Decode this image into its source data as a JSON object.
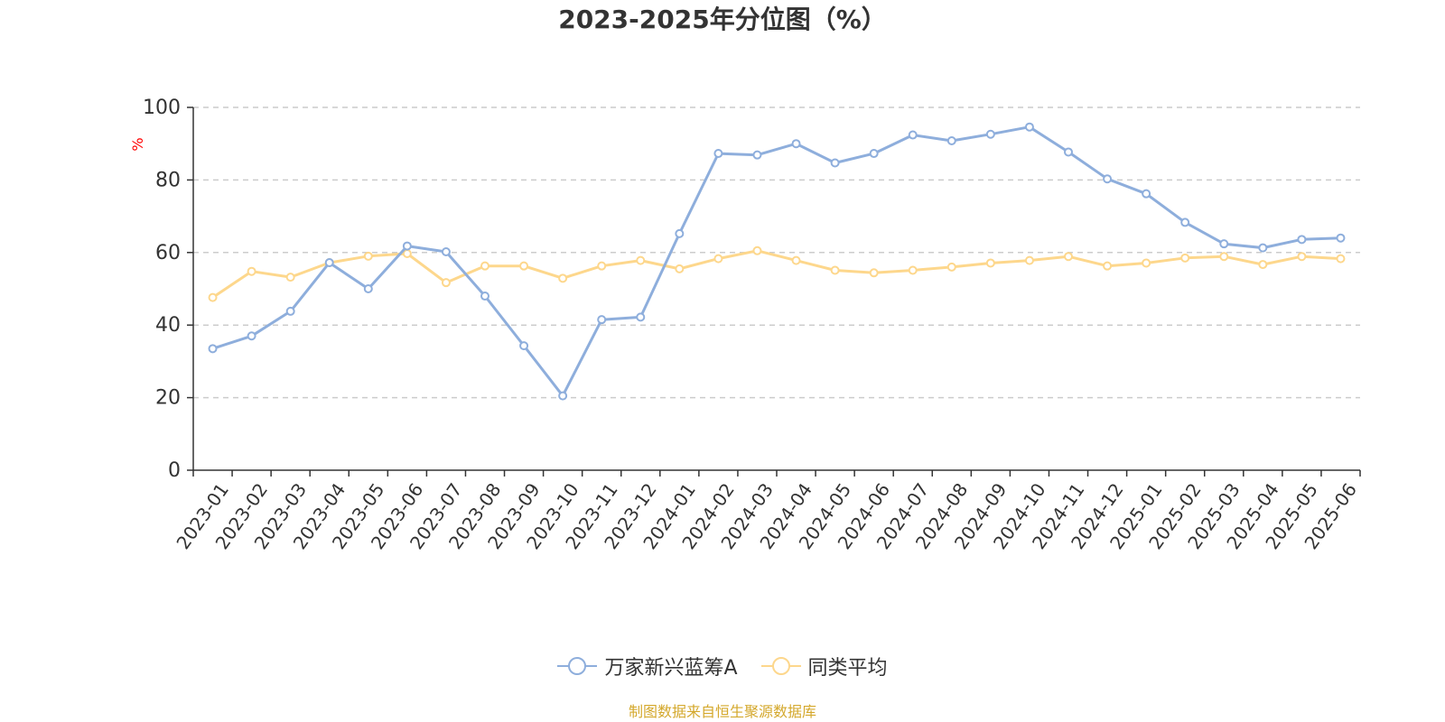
{
  "chart_data": {
    "type": "line",
    "title": "2023-2025年分位图（%）",
    "ylabel": "%",
    "xlabel": "",
    "ylim": [
      0,
      100
    ],
    "yticks": [
      0,
      20,
      40,
      60,
      80,
      100
    ],
    "grid": true,
    "legend_position": "bottom",
    "categories": [
      "2023-01",
      "2023-02",
      "2023-03",
      "2023-04",
      "2023-05",
      "2023-06",
      "2023-07",
      "2023-08",
      "2023-09",
      "2023-10",
      "2023-11",
      "2023-12",
      "2024-01",
      "2024-02",
      "2024-03",
      "2024-04",
      "2024-05",
      "2024-06",
      "2024-07",
      "2024-08",
      "2024-09",
      "2024-10",
      "2024-11",
      "2024-12",
      "2025-01",
      "2025-02",
      "2025-03",
      "2025-04",
      "2025-05",
      "2025-06"
    ],
    "series": [
      {
        "name": "万家新兴蓝筹A",
        "color": "#8eaedc",
        "values": [
          33.5,
          37,
          43.8,
          57.2,
          50,
          61.8,
          60.2,
          48,
          34.3,
          20.5,
          41.5,
          42.2,
          65.2,
          87.3,
          86.9,
          90,
          84.7,
          87.3,
          92.4,
          90.8,
          92.6,
          94.6,
          87.7,
          80.3,
          76.2,
          68.3,
          62.4,
          61.3,
          63.6,
          64
        ]
      },
      {
        "name": "同类平均",
        "color": "#fdd78c",
        "values": [
          47.6,
          54.8,
          53.2,
          57.2,
          59,
          59.7,
          51.7,
          56.3,
          56.3,
          52.9,
          56.3,
          57.8,
          55.5,
          58.3,
          60.5,
          57.8,
          55.1,
          54.4,
          55.1,
          56,
          57.1,
          57.8,
          58.9,
          56.3,
          57.1,
          58.5,
          58.9,
          56.7,
          58.9,
          58.3
        ]
      }
    ]
  },
  "source_text": "制图数据来自恒生聚源数据库",
  "colors": {
    "title": "#333333",
    "axis": "#333333",
    "grid": "#cccccc",
    "ylabel": "#ff0000",
    "source": "#d4a82c"
  }
}
